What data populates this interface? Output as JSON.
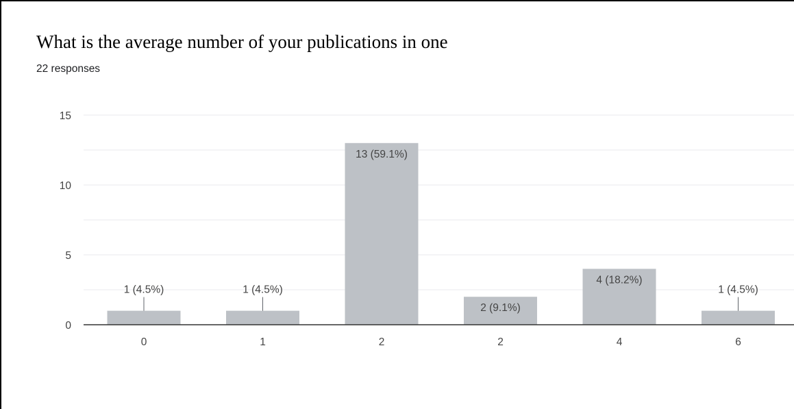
{
  "question_title": "What is the average number of your publications in one",
  "responses_label": "22 responses",
  "chart_data": {
    "type": "bar",
    "categories": [
      "0",
      "1",
      "2",
      "2",
      "4",
      "6"
    ],
    "values": [
      1,
      1,
      13,
      2,
      4,
      1
    ],
    "data_labels": [
      "1 (4.5%)",
      "1 (4.5%)",
      "13 (59.1%)",
      "2 (9.1%)",
      "4 (18.2%)",
      "1 (4.5%)"
    ],
    "title": "What is the average number of your publications in one",
    "subtitle": "22 responses",
    "xlabel": "",
    "ylabel": "",
    "ylim": [
      0,
      15
    ],
    "yticks": [
      0,
      5,
      10,
      15
    ],
    "grid": true,
    "bar_color": "#bdc1c6",
    "grid_color": "#e8eaed",
    "axis_color": "#333333"
  }
}
